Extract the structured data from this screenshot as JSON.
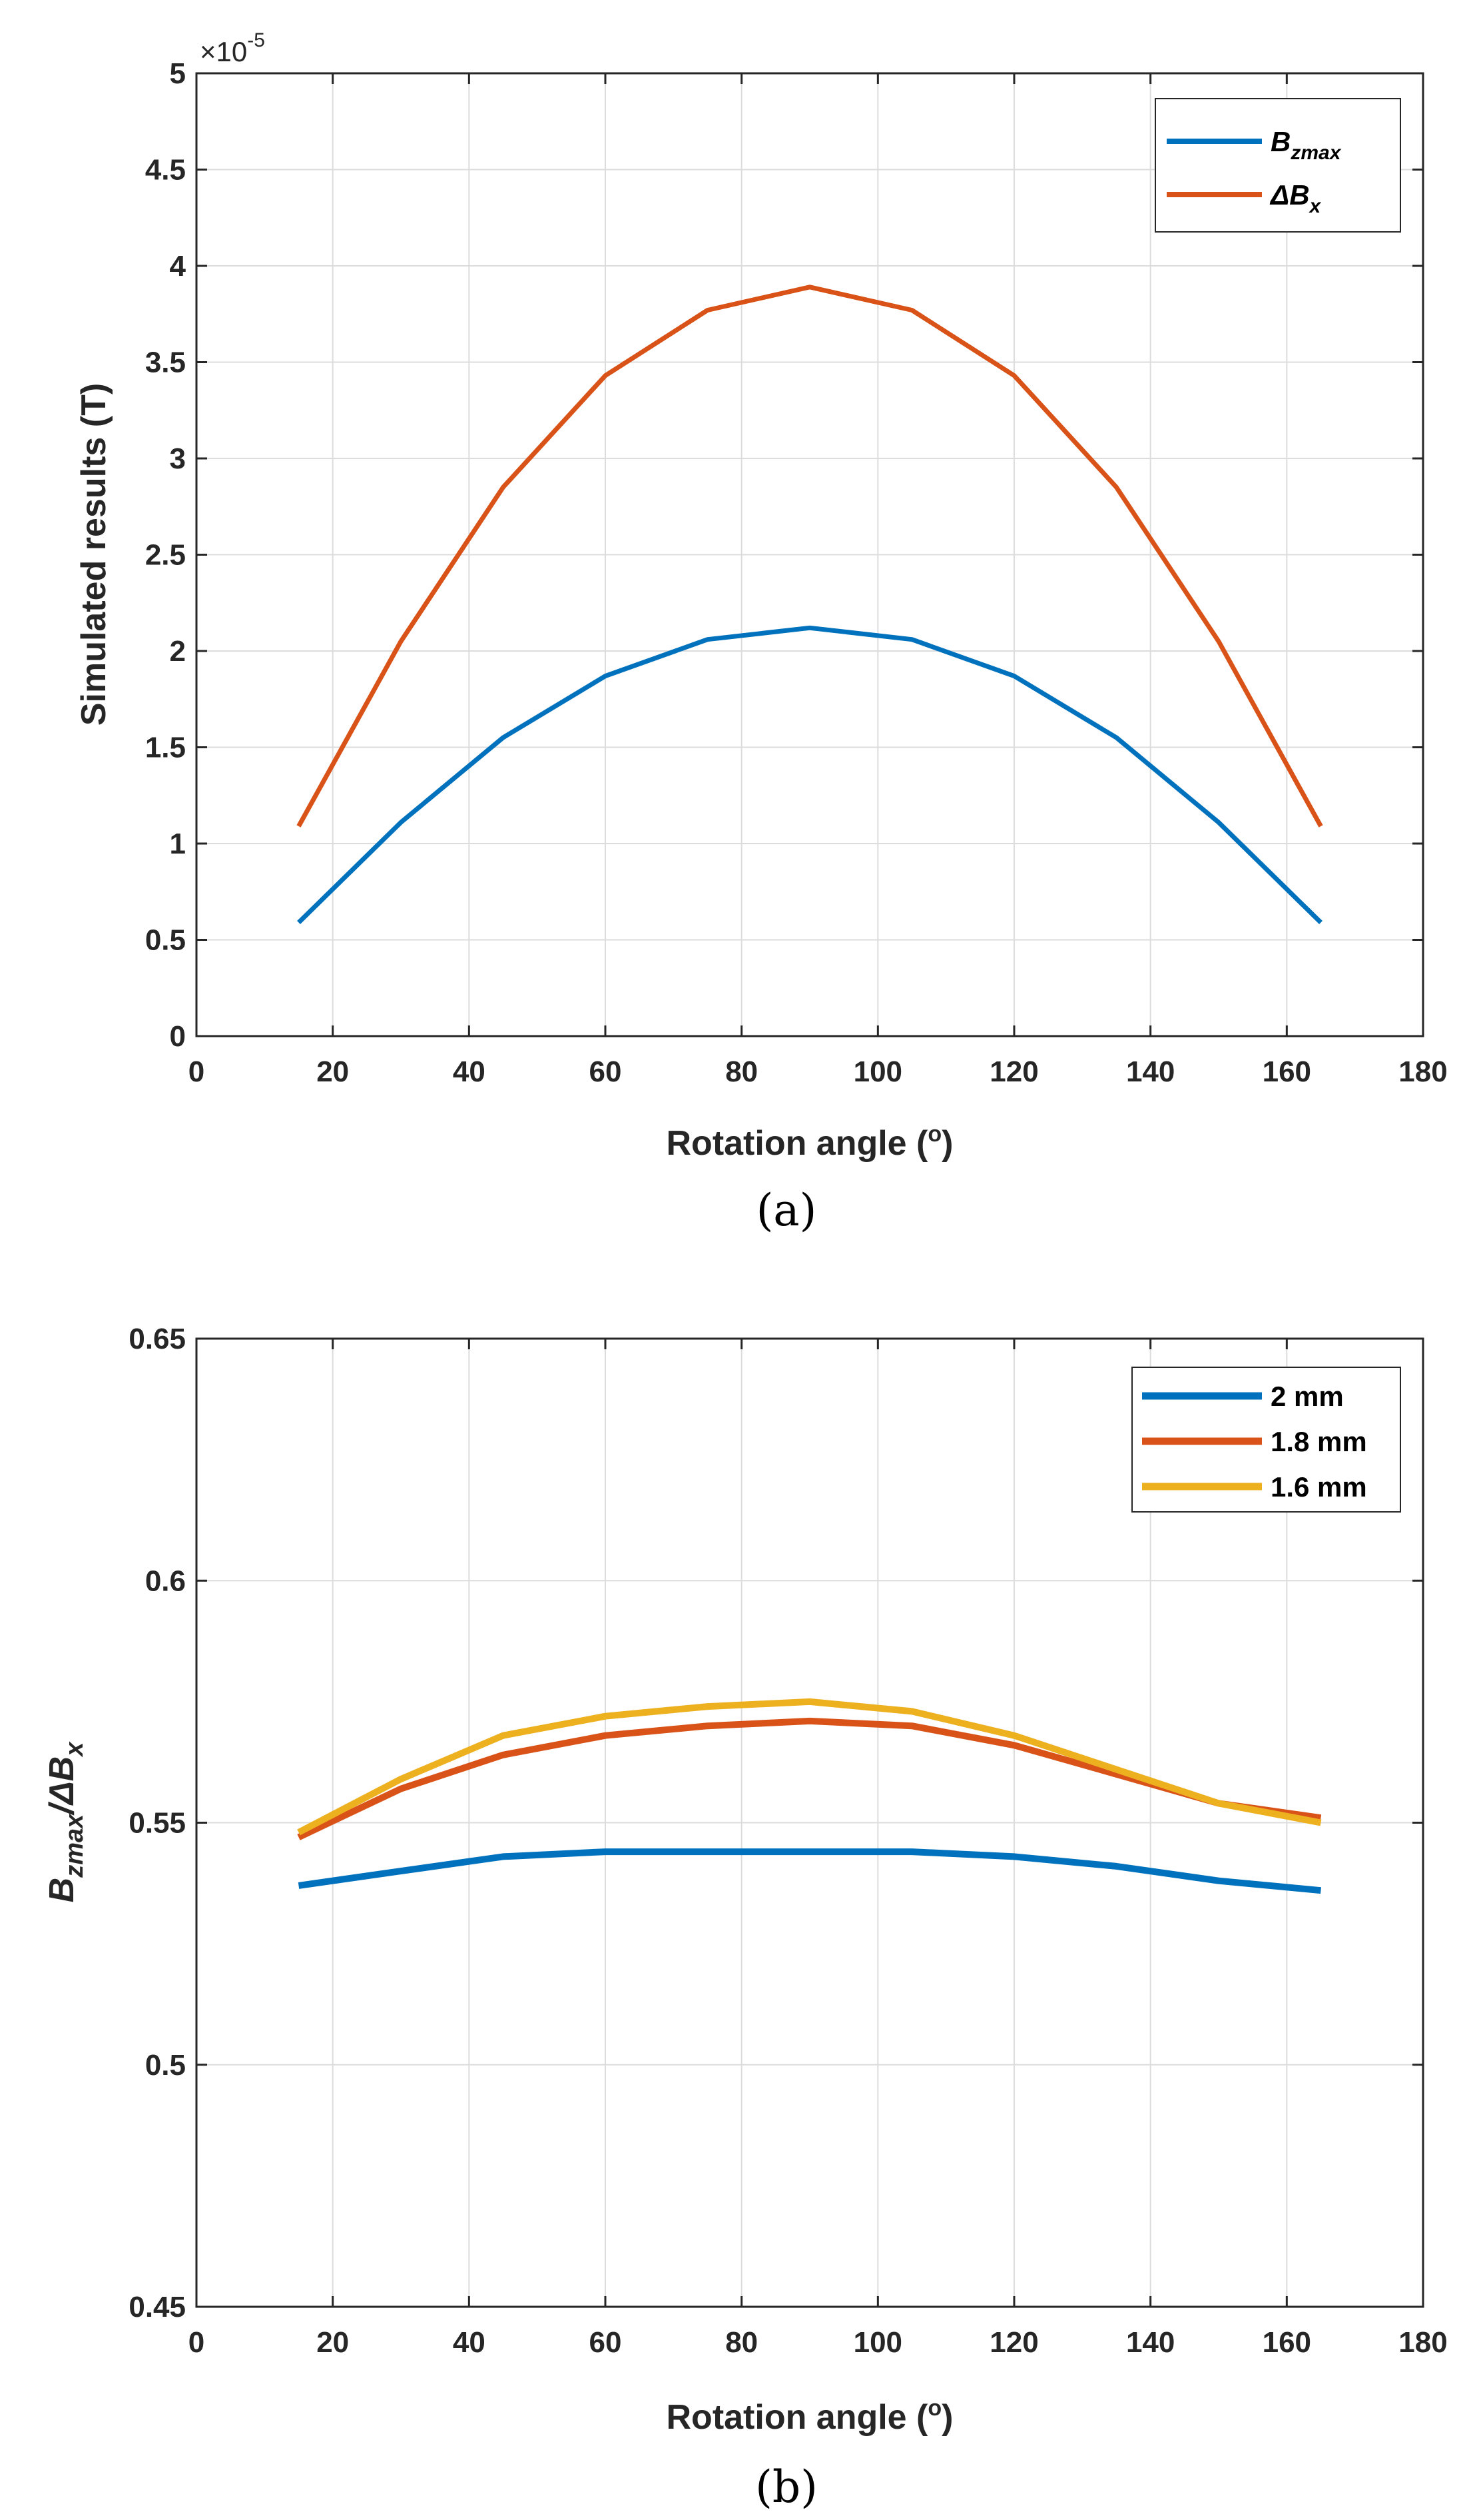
{
  "chart_data": [
    {
      "type": "line",
      "panel_label": "(a)",
      "xlabel": "Rotation angle (",
      "xlabel_sup": "o",
      "xlabel_end": ")",
      "ylabel": "Simulated results (T)",
      "y_multiplier_base": "×10",
      "y_multiplier_exp": "-5",
      "xlim": [
        0,
        180
      ],
      "ylim": [
        0,
        5
      ],
      "xticks": [
        0,
        20,
        40,
        60,
        80,
        100,
        120,
        140,
        160,
        180
      ],
      "yticks": [
        0,
        0.5,
        1,
        1.5,
        2,
        2.5,
        3,
        3.5,
        4,
        4.5,
        5
      ],
      "ytick_labels": [
        "0",
        "0.5",
        "1",
        "1.5",
        "2",
        "2.5",
        "3",
        "3.5",
        "4",
        "4.5",
        "5"
      ],
      "grid": true,
      "legend_position": "top-right",
      "x": [
        15,
        30,
        45,
        60,
        75,
        90,
        105,
        120,
        135,
        150,
        165
      ],
      "series": [
        {
          "name": "B",
          "name_sub": "zmax",
          "color": "#0072bd",
          "values": [
            0.59,
            1.11,
            1.55,
            1.87,
            2.06,
            2.12,
            2.06,
            1.87,
            1.55,
            1.11,
            0.59
          ]
        },
        {
          "name": "ΔB",
          "name_sub": "x",
          "color": "#d95319",
          "values": [
            1.09,
            2.05,
            2.85,
            3.43,
            3.77,
            3.89,
            3.77,
            3.43,
            2.85,
            2.05,
            1.09
          ]
        }
      ]
    },
    {
      "type": "line",
      "panel_label": "(b)",
      "xlabel": "Rotation angle (",
      "xlabel_sup": "o",
      "xlabel_end": ")",
      "ylabel_num": "B",
      "ylabel_num_sub": "zmax",
      "ylabel_den": "/ΔB",
      "ylabel_den_sub": "x",
      "xlim": [
        0,
        180
      ],
      "ylim": [
        0.45,
        0.65
      ],
      "xticks": [
        0,
        20,
        40,
        60,
        80,
        100,
        120,
        140,
        160,
        180
      ],
      "yticks": [
        0.45,
        0.5,
        0.55,
        0.6,
        0.65
      ],
      "ytick_labels": [
        "0.45",
        "0.5",
        "0.55",
        "0.6",
        "0.65"
      ],
      "grid": true,
      "legend_position": "top-right",
      "x": [
        15,
        30,
        45,
        60,
        75,
        90,
        105,
        120,
        135,
        150,
        165
      ],
      "series": [
        {
          "name": "2 mm",
          "color": "#0072bd",
          "values": [
            0.537,
            0.54,
            0.543,
            0.544,
            0.544,
            0.544,
            0.544,
            0.543,
            0.541,
            0.538,
            0.536
          ]
        },
        {
          "name": "1.8 mm",
          "color": "#d95319",
          "values": [
            0.547,
            0.557,
            0.564,
            0.568,
            0.57,
            0.571,
            0.57,
            0.566,
            0.56,
            0.554,
            0.551
          ]
        },
        {
          "name": "1.6 mm",
          "color": "#edb120",
          "values": [
            0.548,
            0.559,
            0.568,
            0.572,
            0.574,
            0.575,
            0.573,
            0.568,
            0.561,
            0.554,
            0.55
          ]
        }
      ]
    }
  ]
}
